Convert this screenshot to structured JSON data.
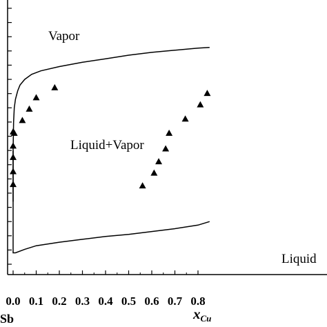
{
  "chart_data": {
    "type": "line",
    "xlabel": "x",
    "xlabel_sub": "Cu",
    "x_endpoint_label": "Sb",
    "xlim": [
      0.0,
      0.85
    ],
    "ylim": [
      0,
      18
    ],
    "x_ticks": [
      "0.0",
      "0.1",
      "0.2",
      "0.3",
      "0.4",
      "0.5",
      "0.6",
      "0.7",
      "0.8"
    ],
    "x_tick_values": [
      0.0,
      0.1,
      0.2,
      0.3,
      0.4,
      0.5,
      0.6,
      0.7,
      0.8
    ],
    "y_tick_count": 19,
    "y_tick_labels_visible": false,
    "regions": [
      "Vapor",
      "Liquid+Vapor",
      "Liquid"
    ],
    "line_color": "#000000",
    "marker": "triangle",
    "series": [
      {
        "curve": "upper",
        "x": [
          0.0,
          0.0,
          0.002,
          0.005,
          0.01,
          0.02,
          0.03,
          0.05,
          0.08,
          0.12,
          0.2,
          0.3,
          0.4,
          0.5,
          0.6,
          0.7,
          0.8,
          0.85
        ],
        "y": [
          4.4,
          8.0,
          10.0,
          11.0,
          11.6,
          12.2,
          12.6,
          13.0,
          13.35,
          13.6,
          13.9,
          14.2,
          14.45,
          14.7,
          14.9,
          15.05,
          15.2,
          15.25
        ]
      },
      {
        "curve": "lower",
        "x": [
          0.0,
          0.0,
          0.01,
          0.05,
          0.1,
          0.2,
          0.3,
          0.4,
          0.5,
          0.6,
          0.7,
          0.8,
          0.85
        ],
        "y": [
          8.0,
          0.8,
          0.8,
          1.05,
          1.3,
          1.55,
          1.75,
          1.95,
          2.1,
          2.3,
          2.5,
          2.75,
          3.0
        ]
      },
      {
        "curve": "points",
        "x": [
          0.0,
          0.0,
          0.0,
          0.0,
          0.0,
          0.005,
          0.04,
          0.07,
          0.1,
          0.18,
          0.56,
          0.61,
          0.63,
          0.66,
          0.675,
          0.745,
          0.81,
          0.84
        ],
        "y": [
          5.6,
          6.5,
          7.5,
          8.3,
          9.3,
          9.2,
          10.1,
          10.9,
          11.7,
          12.4,
          5.5,
          6.4,
          7.2,
          8.1,
          9.2,
          10.2,
          11.2,
          12.0
        ]
      }
    ]
  }
}
